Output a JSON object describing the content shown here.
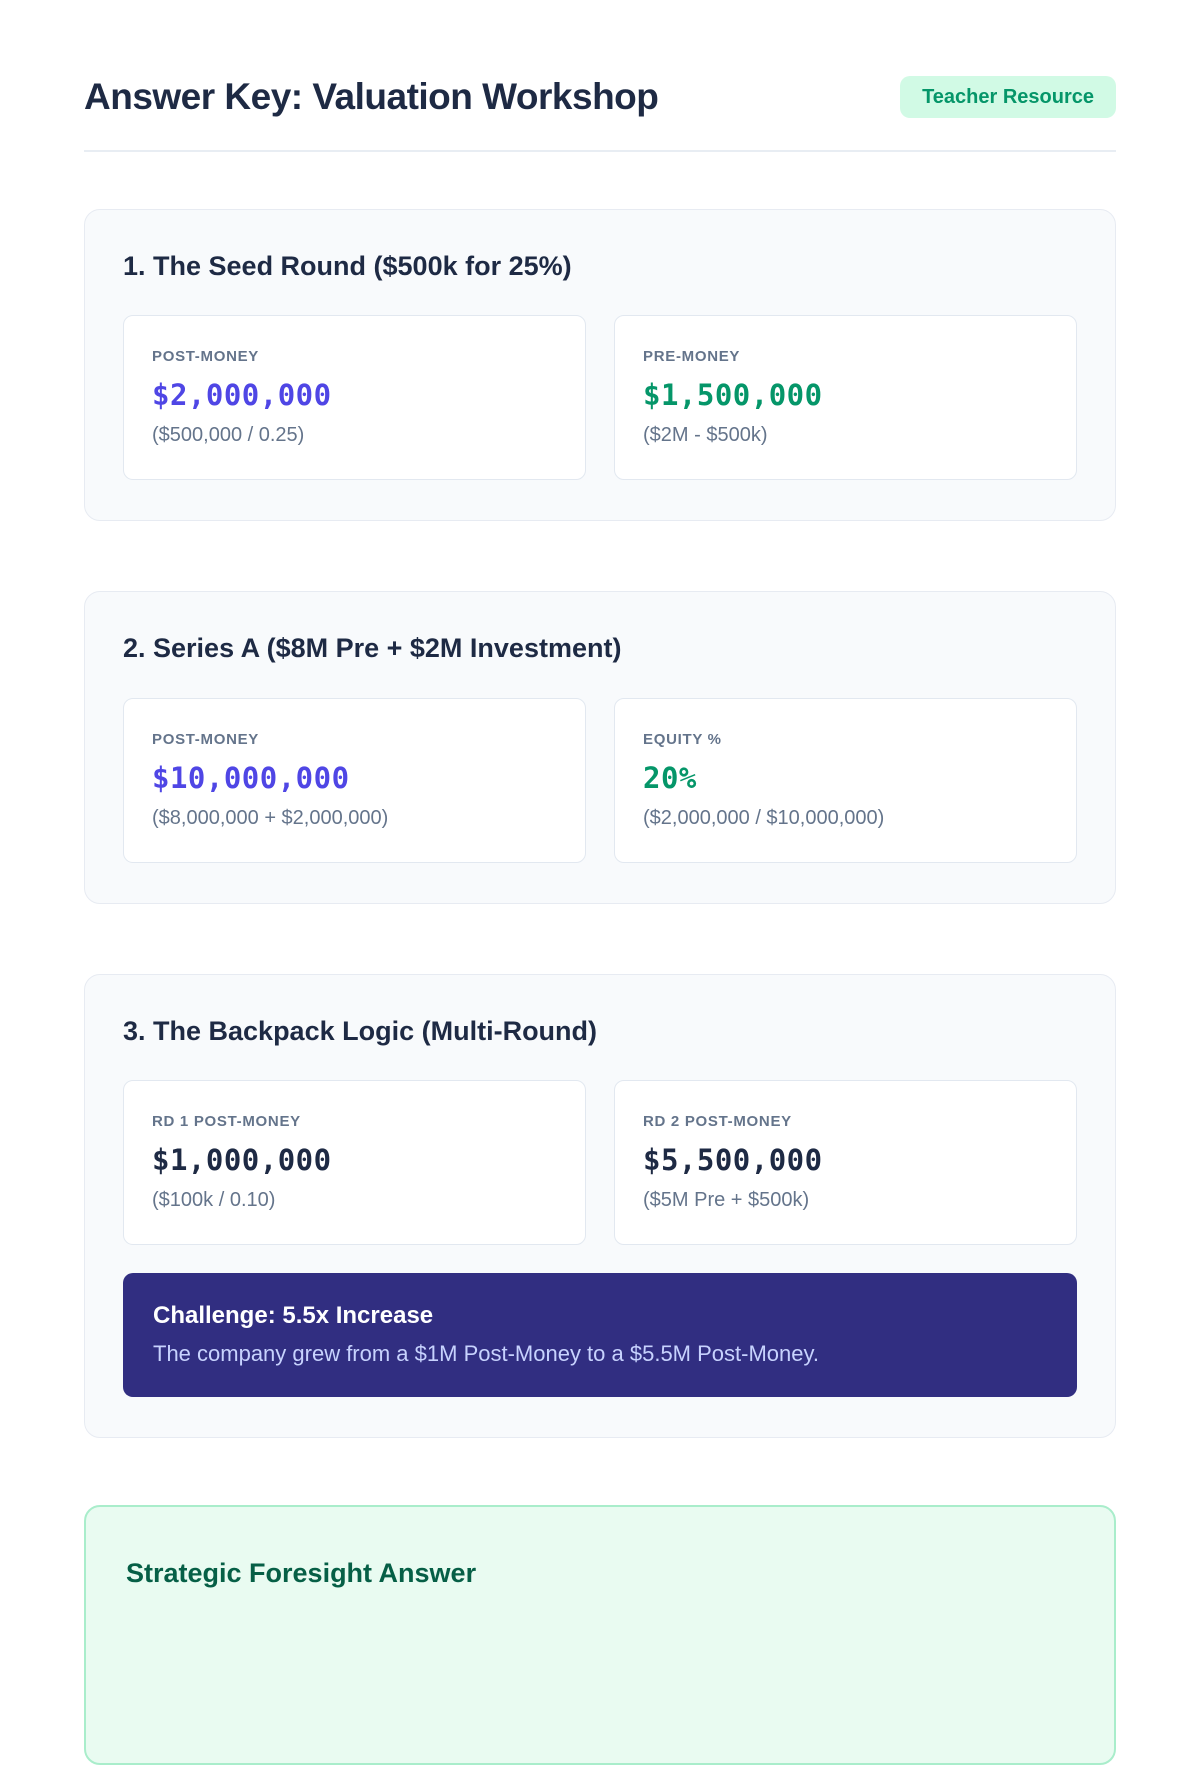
{
  "header": {
    "title": "Answer Key: Valuation Workshop",
    "badge": "Teacher Resource"
  },
  "sections": [
    {
      "heading": "1. The Seed Round ($500k for 25%)",
      "cards": [
        {
          "label": "POST-MONEY",
          "value": "$2,000,000",
          "formula": "($500,000 / 0.25)",
          "value_color": "#4f46e5"
        },
        {
          "label": "PRE-MONEY",
          "value": "$1,500,000",
          "formula": "($2M - $500k)",
          "value_color": "#059669"
        }
      ]
    },
    {
      "heading": "2. Series A ($8M Pre + $2M Investment)",
      "cards": [
        {
          "label": "POST-MONEY",
          "value": "$10,000,000",
          "formula": "($8,000,000 + $2,000,000)",
          "value_color": "#4f46e5"
        },
        {
          "label": "EQUITY %",
          "value": "20%",
          "formula": "($2,000,000 / $10,000,000)",
          "value_color": "#059669"
        }
      ]
    },
    {
      "heading": "3. The Backpack Logic (Multi-Round)",
      "cards": [
        {
          "label": "RD 1 POST-MONEY",
          "value": "$1,000,000",
          "formula": "($100k / 0.10)",
          "value_color": "#1e2a44"
        },
        {
          "label": "RD 2 POST-MONEY",
          "value": "$5,500,000",
          "formula": "($5M Pre + $500k)",
          "value_color": "#1e2a44"
        }
      ],
      "challenge": {
        "title": "Challenge: 5.5x Increase",
        "body": "The company grew from a $1M Post-Money to a $5.5M Post-Money."
      }
    }
  ],
  "footer_note": {
    "heading": "Strategic Foresight Answer"
  },
  "colors": {
    "accent_indigo": "#4f46e5",
    "accent_green": "#059669",
    "navy_text": "#1e2a44",
    "label_gray": "#64748b",
    "badge_bg": "#d1fae5",
    "badge_text": "#059669",
    "panel_bg": "#f8fafc",
    "panel_border": "#e7ebf2",
    "challenge_bg": "#312e81",
    "challenge_body_text": "#c7d2fe",
    "green_panel_bg": "#e9fbf1",
    "green_panel_border": "#a9edcb",
    "green_heading": "#065f46"
  }
}
